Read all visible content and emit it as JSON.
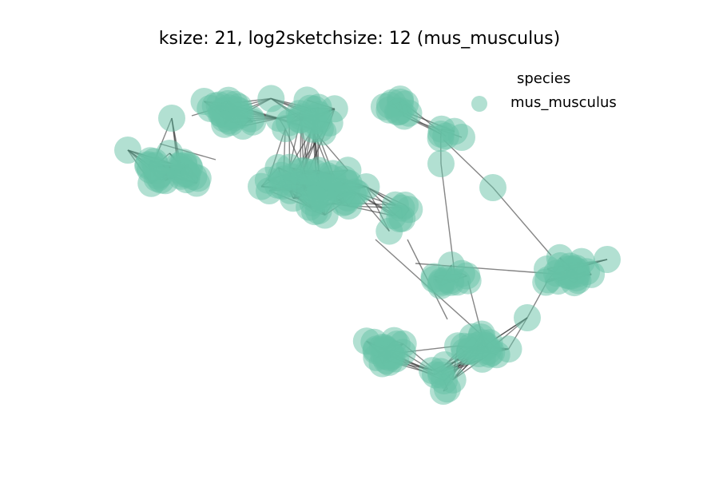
{
  "title": "ksize: 21, log2sketchsize: 12 (mus_musculus)",
  "legend": {
    "title": "species",
    "entries": [
      {
        "label": "mus_musculus",
        "color": "#66c2a5"
      }
    ]
  },
  "colors": {
    "node": "#66c2a5",
    "edge": "#333333"
  },
  "graph": {
    "type": "network",
    "species": "mus_musculus",
    "ksize": 21,
    "log2sketchsize": 12
  }
}
